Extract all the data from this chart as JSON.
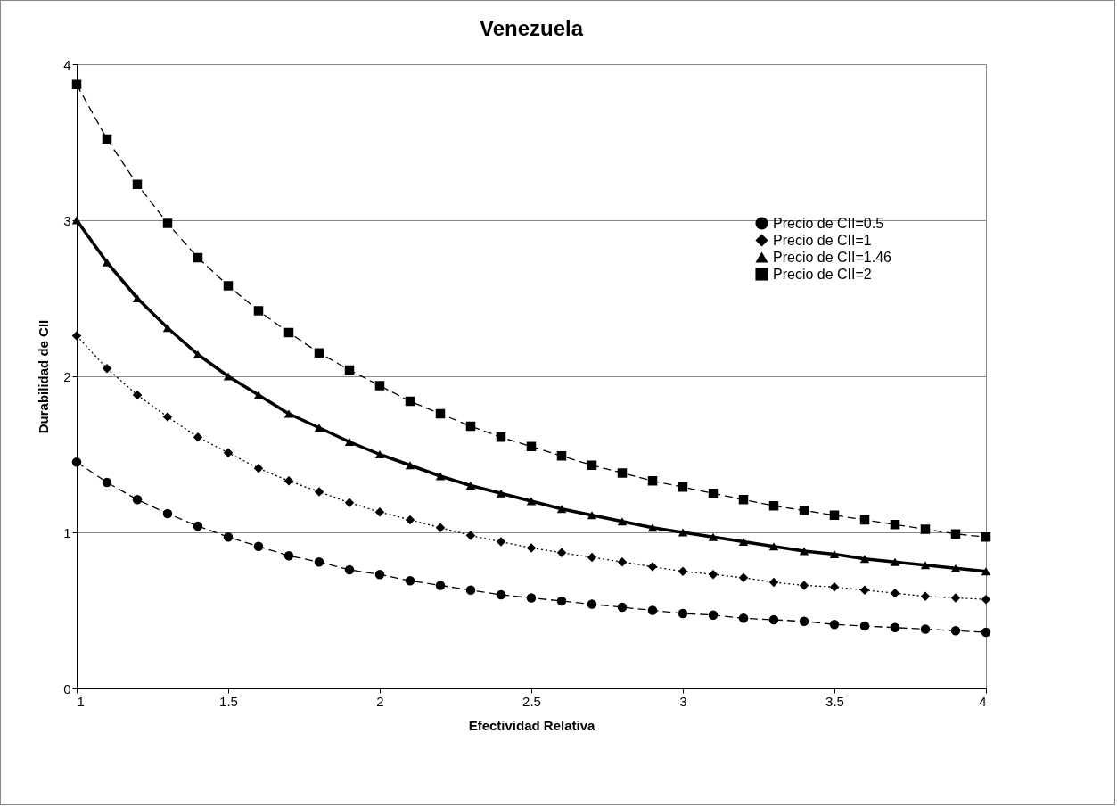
{
  "chart_data": {
    "type": "line",
    "title": "Venezuela",
    "xlabel": "Efectividad Relativa",
    "ylabel": "Durabilidad de CII",
    "x": [
      1,
      1.1,
      1.2,
      1.3,
      1.4,
      1.5,
      1.6,
      1.7,
      1.8,
      1.9,
      2,
      2.1,
      2.2,
      2.3,
      2.4,
      2.5,
      2.6,
      2.7,
      2.8,
      2.9,
      3,
      3.1,
      3.2,
      3.3,
      3.4,
      3.5,
      3.6,
      3.7,
      3.8,
      3.9,
      4
    ],
    "series": [
      {
        "name": "Precio de CII=0.5",
        "color": "#000000",
        "marker": "circle",
        "line_style": "dashed",
        "values": [
          1.45,
          1.32,
          1.21,
          1.12,
          1.04,
          0.97,
          0.91,
          0.85,
          0.81,
          0.76,
          0.73,
          0.69,
          0.66,
          0.63,
          0.6,
          0.58,
          0.56,
          0.54,
          0.52,
          0.5,
          0.48,
          0.47,
          0.45,
          0.44,
          0.43,
          0.41,
          0.4,
          0.39,
          0.38,
          0.37,
          0.36
        ]
      },
      {
        "name": "Precio de CII=1",
        "color": "#000000",
        "marker": "diamond",
        "line_style": "dotted",
        "values": [
          2.26,
          2.05,
          1.88,
          1.74,
          1.61,
          1.51,
          1.41,
          1.33,
          1.26,
          1.19,
          1.13,
          1.08,
          1.03,
          0.98,
          0.94,
          0.9,
          0.87,
          0.84,
          0.81,
          0.78,
          0.75,
          0.73,
          0.71,
          0.68,
          0.66,
          0.65,
          0.63,
          0.61,
          0.59,
          0.58,
          0.57
        ]
      },
      {
        "name": "Precio de CII=1.46",
        "color": "#000000",
        "marker": "triangle",
        "line_style": "solid",
        "values": [
          3.0,
          2.73,
          2.5,
          2.31,
          2.14,
          2.0,
          1.88,
          1.76,
          1.67,
          1.58,
          1.5,
          1.43,
          1.36,
          1.3,
          1.25,
          1.2,
          1.15,
          1.11,
          1.07,
          1.03,
          1.0,
          0.97,
          0.94,
          0.91,
          0.88,
          0.86,
          0.83,
          0.81,
          0.79,
          0.77,
          0.75
        ]
      },
      {
        "name": "Precio de CII=2",
        "color": "#000000",
        "marker": "square",
        "line_style": "dashed",
        "values": [
          3.87,
          3.52,
          3.23,
          2.98,
          2.76,
          2.58,
          2.42,
          2.28,
          2.15,
          2.04,
          1.94,
          1.84,
          1.76,
          1.68,
          1.61,
          1.55,
          1.49,
          1.43,
          1.38,
          1.33,
          1.29,
          1.25,
          1.21,
          1.17,
          1.14,
          1.11,
          1.08,
          1.05,
          1.02,
          0.99,
          0.97
        ]
      }
    ],
    "legend_title": null,
    "xlim": [
      1,
      4
    ],
    "xticks": [
      1,
      1.5,
      2,
      2.5,
      3,
      3.5,
      4
    ],
    "ylim": [
      0,
      4
    ],
    "yticks": [
      0,
      1,
      2,
      3,
      4
    ],
    "grid": "y",
    "legend": "right"
  }
}
